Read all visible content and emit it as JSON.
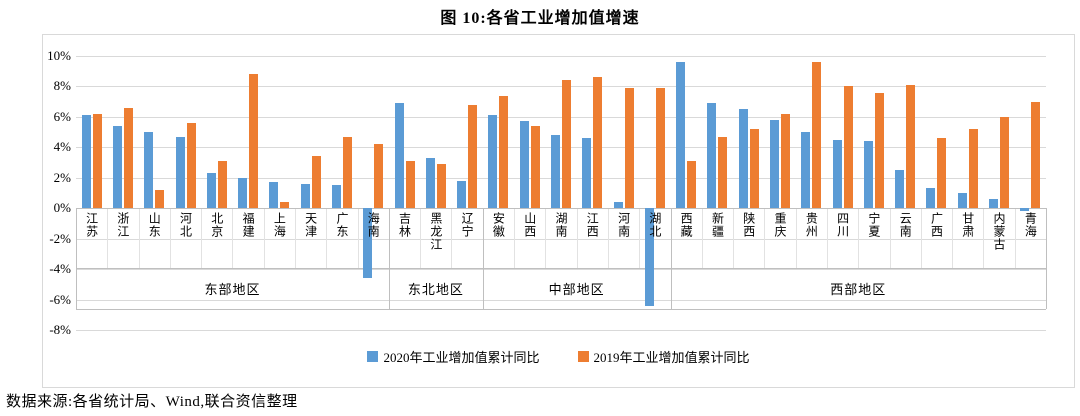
{
  "title": "图 10:各省工业增加值增速",
  "source": "数据来源:各省统计局、Wind,联合资信整理",
  "colors": {
    "series_2020": "#5B9BD5",
    "series_2019": "#ED7D31",
    "gridline": "#D9D9D9",
    "axis_band_line": "#BFBFBF",
    "text": "#000000"
  },
  "chart_data": {
    "type": "bar",
    "title": "图 10:各省工业增加值增速",
    "categories": [
      "江苏",
      "浙江",
      "山东",
      "河北",
      "北京",
      "福建",
      "上海",
      "天津",
      "广东",
      "海南",
      "吉林",
      "黑龙江",
      "辽宁",
      "安徽",
      "山西",
      "湖南",
      "江西",
      "河南",
      "湖北",
      "西藏",
      "新疆",
      "陕西",
      "重庆",
      "贵州",
      "四川",
      "宁夏",
      "云南",
      "广西",
      "甘肃",
      "内蒙古",
      "青海"
    ],
    "groups": [
      {
        "label": "东部地区",
        "count": 10
      },
      {
        "label": "东北地区",
        "count": 3
      },
      {
        "label": "中部地区",
        "count": 6
      },
      {
        "label": "西部地区",
        "count": 12
      }
    ],
    "series": [
      {
        "name": "2020年工业增加值累计同比",
        "color": "#5B9BD5",
        "values": [
          6.1,
          5.4,
          5.0,
          4.7,
          2.3,
          2.0,
          1.7,
          1.6,
          1.5,
          -4.6,
          6.9,
          3.3,
          1.8,
          6.1,
          5.7,
          4.8,
          4.6,
          0.4,
          -6.4,
          9.6,
          6.9,
          6.5,
          5.8,
          5.0,
          4.5,
          4.4,
          2.5,
          1.3,
          1.0,
          0.6,
          -0.2
        ]
      },
      {
        "name": "2019年工业增加值累计同比",
        "color": "#ED7D31",
        "values": [
          6.2,
          6.6,
          1.2,
          5.6,
          3.1,
          8.8,
          0.4,
          3.4,
          4.7,
          4.2,
          3.1,
          2.9,
          6.8,
          7.4,
          5.4,
          8.4,
          8.6,
          7.9,
          7.9,
          3.1,
          4.7,
          5.2,
          6.2,
          9.6,
          8.0,
          7.6,
          8.1,
          4.6,
          5.2,
          6.0,
          7.0
        ]
      }
    ],
    "ylim": [
      -8,
      10
    ],
    "ytick_step": 2,
    "yticks": [
      "10%",
      "8%",
      "6%",
      "4%",
      "2%",
      "0%",
      "-2%",
      "-4%",
      "-6%",
      "-8%"
    ],
    "grid": true,
    "legend_position": "bottom"
  }
}
